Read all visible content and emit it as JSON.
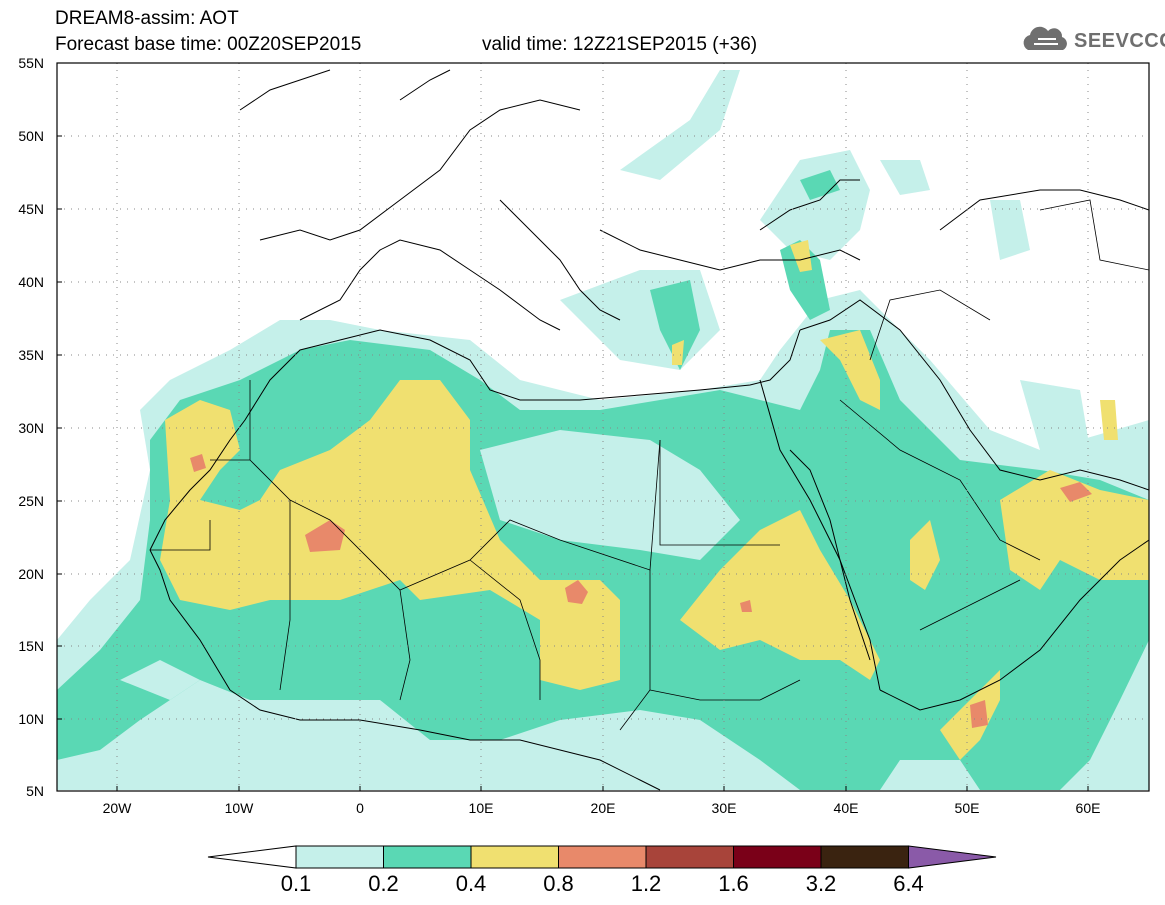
{
  "header": {
    "line1": "DREAM8-assim: AOT",
    "base_time": "Forecast base time: 00Z20SEP2015",
    "valid_time": "valid time: 12Z21SEP2015 (+36)"
  },
  "logo": {
    "text": "SEEVCCC",
    "icon": "cloud-icon"
  },
  "map": {
    "lat_labels": [
      "55N",
      "50N",
      "45N",
      "40N",
      "35N",
      "30N",
      "25N",
      "20N",
      "15N",
      "10N",
      "5N"
    ],
    "lon_labels": [
      "20W",
      "10W",
      "0",
      "10E",
      "20E",
      "30E",
      "40E",
      "50E",
      "60E"
    ],
    "lat_range": [
      5,
      55
    ],
    "lon_range": [
      -25,
      65
    ],
    "grid": "dotted"
  },
  "colorbar": {
    "levels": [
      "0.1",
      "0.2",
      "0.4",
      "0.8",
      "1.2",
      "1.6",
      "3.2",
      "6.4"
    ],
    "colors": [
      "#c5f0ea",
      "#5ad8b4",
      "#f0e070",
      "#e8896a",
      "#a8443a",
      "#7a0018",
      "#3a2310",
      "#8a5aa8"
    ],
    "under_color": "#ffffff",
    "over_color": "#8a5aa8"
  }
}
